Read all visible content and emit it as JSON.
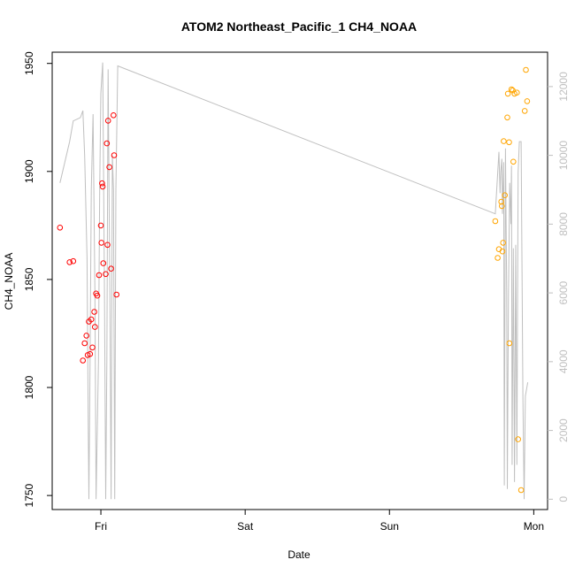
{
  "chart_data": {
    "type": "scatter",
    "title": "ATOM2 Northeast_Pacific_1 CH4_NOAA",
    "xlabel": "Date",
    "ylabel": "CH4_NOAA",
    "x_ticks": [
      "Fri",
      "Sat",
      "Sun",
      "Mon"
    ],
    "x_tick_hours": [
      24,
      48,
      72,
      96
    ],
    "xlim_hours": [
      15.9,
      98.3
    ],
    "ylim": [
      1743.5,
      1955.2
    ],
    "y_ticks": [
      1750,
      1800,
      1850,
      1900,
      1950
    ],
    "y2lim": [
      -300,
      13000
    ],
    "y2_ticks": [
      0,
      2000,
      4000,
      6000,
      8000,
      10000,
      12000
    ],
    "grid": false,
    "series": [
      {
        "color": "#ff0000",
        "points": [
          [
            17.2,
            1874
          ],
          [
            18.8,
            1858
          ],
          [
            19.4,
            1858.5
          ],
          [
            21.0,
            1812.5
          ],
          [
            21.3,
            1820.5
          ],
          [
            21.6,
            1824
          ],
          [
            21.8,
            1815
          ],
          [
            22.0,
            1830.5
          ],
          [
            22.2,
            1815.5
          ],
          [
            22.4,
            1831.5
          ],
          [
            22.6,
            1818.5
          ],
          [
            22.9,
            1835
          ],
          [
            23.0,
            1828
          ],
          [
            23.2,
            1843.5
          ],
          [
            23.4,
            1842.5
          ],
          [
            23.7,
            1852
          ],
          [
            24.0,
            1875
          ],
          [
            24.1,
            1867
          ],
          [
            24.2,
            1894.5
          ],
          [
            24.3,
            1893
          ],
          [
            24.4,
            1857.5
          ],
          [
            24.8,
            1852.5
          ],
          [
            25.0,
            1913
          ],
          [
            25.1,
            1866
          ],
          [
            25.2,
            1923.5
          ],
          [
            25.4,
            1902
          ],
          [
            25.7,
            1855
          ],
          [
            26.1,
            1926
          ],
          [
            26.2,
            1907.5
          ],
          [
            26.6,
            1843
          ]
        ]
      },
      {
        "color": "#ffa500",
        "points": [
          [
            89.6,
            1877
          ],
          [
            90.0,
            1860
          ],
          [
            90.2,
            1864
          ],
          [
            90.6,
            1886
          ],
          [
            90.7,
            1884
          ],
          [
            90.8,
            1863
          ],
          [
            90.9,
            1867
          ],
          [
            91.0,
            1914
          ],
          [
            91.2,
            1889
          ],
          [
            91.6,
            1925
          ],
          [
            91.7,
            1936
          ],
          [
            91.9,
            1913.5
          ],
          [
            91.95,
            1820.5
          ],
          [
            92.3,
            1938
          ],
          [
            92.5,
            1937.5
          ],
          [
            92.6,
            1904.5
          ],
          [
            92.8,
            1936
          ],
          [
            93.2,
            1936.5
          ],
          [
            93.4,
            1776
          ],
          [
            93.9,
            1752.5
          ],
          [
            94.5,
            1928
          ],
          [
            94.7,
            1947
          ],
          [
            94.9,
            1932.5
          ]
        ]
      }
    ],
    "line_series": {
      "color": "#bfbfbf",
      "axis": "right",
      "points": [
        [
          17.2,
          9200
        ],
        [
          18.8,
          10400
        ],
        [
          19.4,
          11000
        ],
        [
          20.6,
          11100
        ],
        [
          21.0,
          11300
        ],
        [
          21.3,
          10000
        ],
        [
          21.7,
          7000
        ],
        [
          21.9,
          2000
        ],
        [
          22.0,
          0
        ],
        [
          22.2,
          4000
        ],
        [
          22.4,
          9000
        ],
        [
          22.7,
          11200
        ],
        [
          23.0,
          6000
        ],
        [
          23.2,
          0
        ],
        [
          23.6,
          4000
        ],
        [
          23.8,
          9000
        ],
        [
          24.0,
          11800
        ],
        [
          24.3,
          12700
        ],
        [
          24.6,
          6000
        ],
        [
          24.8,
          0
        ],
        [
          25.0,
          4000
        ],
        [
          25.2,
          12500
        ],
        [
          25.5,
          6000
        ],
        [
          25.7,
          0
        ],
        [
          25.9,
          10000
        ],
        [
          26.1,
          9000
        ],
        [
          26.3,
          0
        ],
        [
          26.5,
          9000
        ],
        [
          26.8,
          12600
        ],
        [
          89.6,
          8300
        ],
        [
          90.2,
          10100
        ],
        [
          90.4,
          8900
        ],
        [
          90.5,
          9500
        ],
        [
          90.7,
          9900
        ],
        [
          90.8,
          8300
        ],
        [
          91.0,
          9800
        ],
        [
          91.1,
          400
        ],
        [
          91.3,
          10200
        ],
        [
          91.5,
          6000
        ],
        [
          91.6,
          300
        ],
        [
          91.8,
          6000
        ],
        [
          92.0,
          9200
        ],
        [
          92.2,
          8000
        ],
        [
          92.3,
          9700
        ],
        [
          92.4,
          1000
        ],
        [
          92.6,
          7300
        ],
        [
          92.8,
          500
        ],
        [
          93.0,
          7400
        ],
        [
          93.2,
          1000
        ],
        [
          93.4,
          9500
        ],
        [
          93.6,
          10400
        ],
        [
          93.9,
          10400
        ],
        [
          94.2,
          3000
        ],
        [
          94.4,
          0
        ],
        [
          94.6,
          3000
        ],
        [
          95.0,
          3400
        ]
      ]
    }
  }
}
